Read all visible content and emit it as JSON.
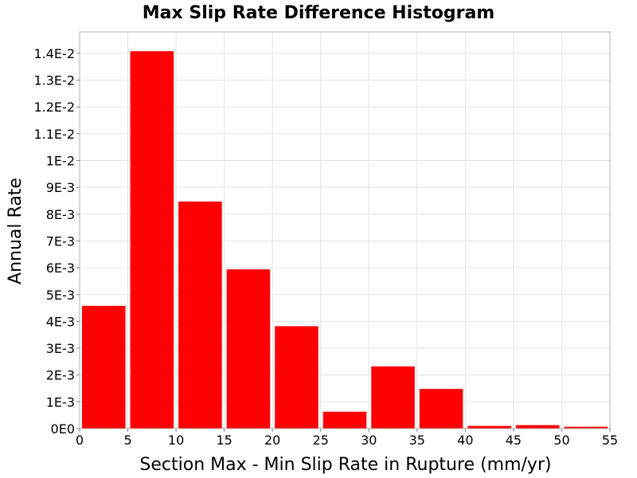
{
  "chart_data": {
    "type": "bar",
    "title": "Max Slip Rate Difference Histogram",
    "xlabel": "Section Max - Min Slip Rate in Rupture (mm/yr)",
    "ylabel": "Annual Rate",
    "xlim": [
      0,
      55
    ],
    "ylim": [
      0,
      0.0148
    ],
    "x_ticks": [
      0,
      5,
      10,
      15,
      20,
      25,
      30,
      35,
      40,
      45,
      50,
      55
    ],
    "x_tick_labels": [
      "0",
      "5",
      "10",
      "15",
      "20",
      "25",
      "30",
      "35",
      "40",
      "45",
      "50",
      "55"
    ],
    "y_ticks": [
      0,
      0.001,
      0.002,
      0.003,
      0.004,
      0.005,
      0.006,
      0.007,
      0.008,
      0.009,
      0.01,
      0.011,
      0.012,
      0.013,
      0.014
    ],
    "y_tick_labels": [
      "0E0",
      "1E-3",
      "2E-3",
      "3E-3",
      "4E-3",
      "5E-3",
      "6E-3",
      "7E-3",
      "8E-3",
      "9E-3",
      "1E-2",
      "1.1E-2",
      "1.2E-2",
      "1.3E-2",
      "1.4E-2"
    ],
    "bin_width": 5,
    "bins": [
      {
        "x_start": 0,
        "x_end": 5,
        "value": 0.00458
      },
      {
        "x_start": 5,
        "x_end": 10,
        "value": 0.01408
      },
      {
        "x_start": 10,
        "x_end": 15,
        "value": 0.00847
      },
      {
        "x_start": 15,
        "x_end": 20,
        "value": 0.00594
      },
      {
        "x_start": 20,
        "x_end": 25,
        "value": 0.00382
      },
      {
        "x_start": 25,
        "x_end": 30,
        "value": 0.00063
      },
      {
        "x_start": 30,
        "x_end": 35,
        "value": 0.00232
      },
      {
        "x_start": 35,
        "x_end": 40,
        "value": 0.00148
      },
      {
        "x_start": 40,
        "x_end": 45,
        "value": 0.0001
      },
      {
        "x_start": 45,
        "x_end": 50,
        "value": 0.00013
      },
      {
        "x_start": 50,
        "x_end": 55,
        "value": 7e-05
      }
    ],
    "bar_color": "#ff0000",
    "grid": true,
    "legend": "none"
  }
}
